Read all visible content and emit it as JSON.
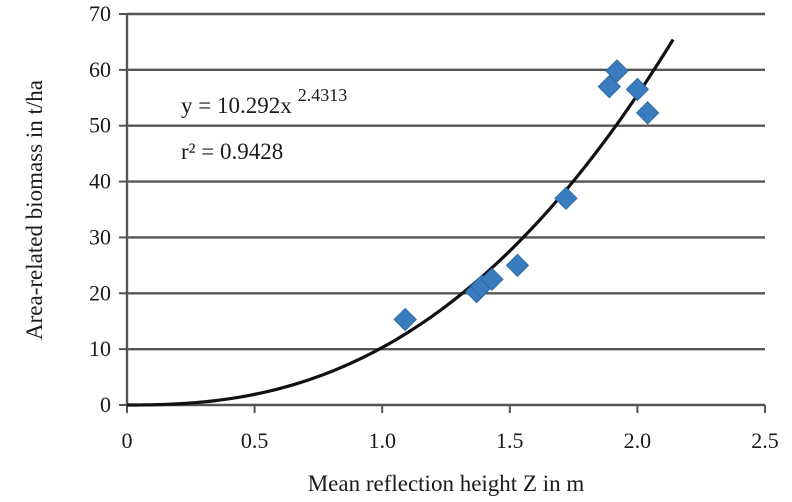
{
  "chart_data": {
    "type": "scatter",
    "xlabel": "Mean reflection height Z in m",
    "ylabel": "Area-related biomass in t/ha",
    "xlim": [
      0,
      2.5
    ],
    "ylim": [
      0,
      70
    ],
    "x_ticks": [
      "0",
      "0.5",
      "1.0",
      "1.5",
      "2.0",
      "2.5"
    ],
    "y_ticks": [
      "0",
      "10",
      "20",
      "30",
      "40",
      "50",
      "60",
      "70"
    ],
    "grid": "horizontal",
    "marker_color": "#3a7dbf",
    "points": [
      {
        "x": 1.09,
        "y": 15.3
      },
      {
        "x": 1.37,
        "y": 20.3
      },
      {
        "x": 1.39,
        "y": 21.3
      },
      {
        "x": 1.43,
        "y": 22.5
      },
      {
        "x": 1.53,
        "y": 25.0
      },
      {
        "x": 1.72,
        "y": 37.0
      },
      {
        "x": 1.89,
        "y": 57.0
      },
      {
        "x": 1.92,
        "y": 59.8
      },
      {
        "x": 2.0,
        "y": 56.5
      },
      {
        "x": 2.04,
        "y": 52.3
      }
    ],
    "trendline": {
      "type": "power",
      "coefficient": 10.292,
      "exponent": 2.4313,
      "x_range": [
        0,
        2.14
      ]
    },
    "equation": {
      "lhs": "y = 10.292x",
      "exponent": "2.4313",
      "r_squared": "r² = 0.9428"
    }
  }
}
